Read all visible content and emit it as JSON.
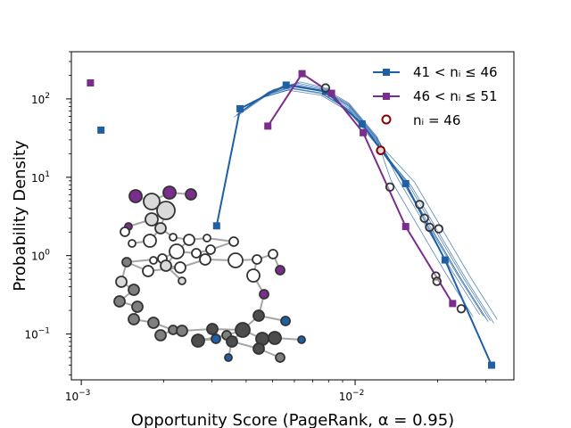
{
  "chart_data": {
    "type": "scatter",
    "xlabel": "Opportunity Score (PageRank, α = 0.95)",
    "ylabel": "Probability Density",
    "x_scale": "log",
    "y_scale": "log",
    "xlim": [
      0.00092,
      0.038
    ],
    "ylim": [
      0.026,
      400
    ],
    "x_ticks": [
      {
        "value": 0.001,
        "base": "10",
        "exp": "−3"
      },
      {
        "value": 0.01,
        "base": "10",
        "exp": "−2"
      }
    ],
    "y_ticks": [
      {
        "value": 0.1,
        "base": "10",
        "exp": "−1"
      },
      {
        "value": 1,
        "base": "10",
        "exp": "0"
      },
      {
        "value": 10,
        "base": "10",
        "exp": "1"
      },
      {
        "value": 100,
        "base": "10",
        "exp": "2"
      }
    ],
    "legend_position": "top-right",
    "legend": [
      {
        "label": "41 < nᵢ ≤ 46",
        "series": "blue"
      },
      {
        "label": "46 < nᵢ ≤ 51",
        "series": "purple"
      },
      {
        "label": "nᵢ = 46",
        "series": "circles"
      }
    ],
    "series": [
      {
        "key": "blue",
        "color": "#1f5fa6",
        "marker": "square",
        "points": [
          {
            "x": 0.00118,
            "y": 40
          },
          {
            "x": 0.00312,
            "y": 2.4
          },
          {
            "x": 0.0038,
            "y": 75
          },
          {
            "x": 0.0056,
            "y": 150
          },
          {
            "x": 0.0078,
            "y": 125
          },
          {
            "x": 0.0106,
            "y": 48
          },
          {
            "x": 0.0153,
            "y": 8.3
          },
          {
            "x": 0.0213,
            "y": 0.88
          },
          {
            "x": 0.0315,
            "y": 0.04
          }
        ]
      },
      {
        "key": "purple",
        "color": "#7b2d8e",
        "marker": "square",
        "points": [
          {
            "x": 0.00108,
            "y": 160
          },
          {
            "x": 0.0048,
            "y": 45
          },
          {
            "x": 0.0064,
            "y": 210
          },
          {
            "x": 0.0082,
            "y": 118
          },
          {
            "x": 0.0107,
            "y": 37
          },
          {
            "x": 0.0153,
            "y": 2.35
          },
          {
            "x": 0.0227,
            "y": 0.245
          }
        ]
      },
      {
        "key": "circles",
        "color": "#8b0000",
        "marker": "open-circle",
        "points": [
          {
            "x": 0.0078,
            "y": 138
          },
          {
            "x": 0.0124,
            "y": 22
          },
          {
            "x": 0.0134,
            "y": 7.5
          },
          {
            "x": 0.0172,
            "y": 4.5
          },
          {
            "x": 0.0179,
            "y": 3.0
          },
          {
            "x": 0.0187,
            "y": 2.3
          },
          {
            "x": 0.0202,
            "y": 2.2
          },
          {
            "x": 0.0197,
            "y": 0.55
          },
          {
            "x": 0.0199,
            "y": 0.47
          },
          {
            "x": 0.0244,
            "y": 0.21
          }
        ]
      }
    ],
    "thin_curves_color": "#1f5fa6",
    "inset_network": {
      "node_colors": {
        "light": "#d9d9d9",
        "white": "#ffffff",
        "gray": "#7f7f7f",
        "dark": "#4d4d4d",
        "purple": "#7b2d8e",
        "blue": "#1f5fa6"
      },
      "edge_color": "#a6a6a6"
    }
  }
}
